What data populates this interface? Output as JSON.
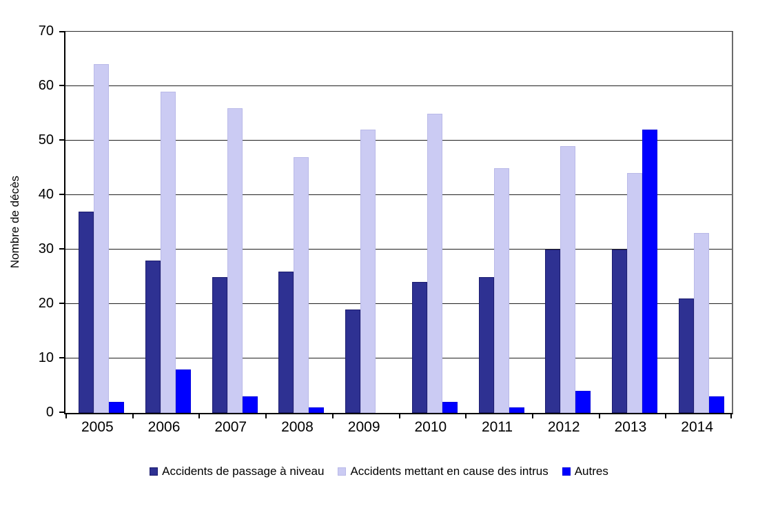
{
  "chart_data": {
    "type": "bar",
    "title": "",
    "xlabel": "",
    "ylabel": "Nombre de décès",
    "ylim": [
      0,
      70
    ],
    "ytick_step": 10,
    "grid": true,
    "legend_position": "bottom",
    "categories": [
      "2005",
      "2006",
      "2007",
      "2008",
      "2009",
      "2010",
      "2011",
      "2012",
      "2013",
      "2014"
    ],
    "series": [
      {
        "name": "Accidents de passage à niveau",
        "color": "#2E3192",
        "border_color": "#1B1B6E",
        "values": [
          37,
          28,
          25,
          26,
          19,
          24,
          25,
          30,
          30,
          21
        ]
      },
      {
        "name": "Accidents mettant en cause des intrus",
        "color": "#CBCBF3",
        "border_color": "#B9B9E8",
        "values": [
          64,
          59,
          56,
          47,
          52,
          55,
          45,
          49,
          44,
          33
        ]
      },
      {
        "name": "Autres",
        "color": "#0000FF",
        "border_color": "#0000DD",
        "values": [
          2,
          8,
          3,
          1,
          0,
          2,
          1,
          4,
          52,
          3
        ]
      }
    ]
  }
}
